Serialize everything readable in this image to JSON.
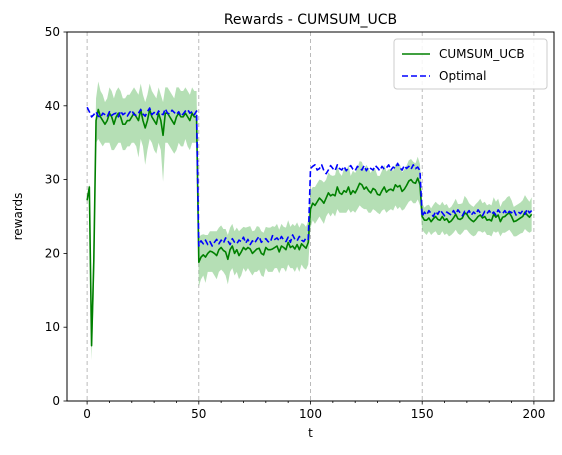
{
  "chart_data": {
    "type": "line",
    "title": "Rewards - CUMSUM_UCB",
    "xlabel": "t",
    "ylabel": "rewards",
    "xlim": [
      -9,
      209
    ],
    "ylim": [
      0,
      50
    ],
    "xticks": [
      0,
      50,
      100,
      150,
      200
    ],
    "yticks": [
      0,
      10,
      20,
      30,
      40,
      50
    ],
    "vlines": [
      0,
      50,
      100,
      150,
      200
    ],
    "legend_position": "upper right",
    "series": [
      {
        "name": "CUMSUM_UCB",
        "style": "solid",
        "color": "#008000",
        "band_color": "#5cb85c",
        "x": [
          0,
          1,
          2,
          3,
          4,
          5,
          6,
          7,
          8,
          9,
          10,
          11,
          12,
          13,
          14,
          15,
          16,
          17,
          18,
          19,
          20,
          21,
          22,
          23,
          24,
          25,
          26,
          27,
          28,
          29,
          30,
          31,
          32,
          33,
          34,
          35,
          36,
          37,
          38,
          39,
          40,
          41,
          42,
          43,
          44,
          45,
          46,
          47,
          48,
          49,
          50,
          51,
          52,
          53,
          54,
          55,
          56,
          57,
          58,
          59,
          60,
          61,
          62,
          63,
          64,
          65,
          66,
          67,
          68,
          69,
          70,
          71,
          72,
          73,
          74,
          75,
          76,
          77,
          78,
          79,
          80,
          81,
          82,
          83,
          84,
          85,
          86,
          87,
          88,
          89,
          90,
          91,
          92,
          93,
          94,
          95,
          96,
          97,
          98,
          99,
          100,
          101,
          102,
          103,
          104,
          105,
          106,
          107,
          108,
          109,
          110,
          111,
          112,
          113,
          114,
          115,
          116,
          117,
          118,
          119,
          120,
          121,
          122,
          123,
          124,
          125,
          126,
          127,
          128,
          129,
          130,
          131,
          132,
          133,
          134,
          135,
          136,
          137,
          138,
          139,
          140,
          141,
          142,
          143,
          144,
          145,
          146,
          147,
          148,
          149,
          150,
          151,
          152,
          153,
          154,
          155,
          156,
          157,
          158,
          159,
          160,
          161,
          162,
          163,
          164,
          165,
          166,
          167,
          168,
          169,
          170,
          171,
          172,
          173,
          174,
          175,
          176,
          177,
          178,
          179,
          180,
          181,
          182,
          183,
          184,
          185,
          186,
          187,
          188,
          189,
          190,
          191,
          192,
          193,
          194,
          195,
          196,
          197,
          198,
          199
        ],
        "values": [
          27.2,
          29,
          7.5,
          19,
          38,
          39.5,
          38.5,
          38,
          37.5,
          38,
          39,
          38.5,
          37.5,
          38.5,
          39,
          38.5,
          37.5,
          37.5,
          38,
          38,
          38.5,
          39,
          38.5,
          38,
          39.5,
          38,
          37,
          38,
          39.5,
          38.5,
          38,
          37.5,
          39,
          38,
          36,
          39,
          39,
          38.5,
          38,
          37.5,
          38.5,
          39,
          38.5,
          38.5,
          39,
          38.5,
          38,
          39,
          38.5,
          38.5,
          18.8,
          19.5,
          19.8,
          19.5,
          20,
          20.3,
          20.2,
          20,
          19.7,
          20.5,
          20.8,
          20.4,
          20.2,
          19.2,
          20.5,
          21,
          20,
          20.5,
          19.7,
          20.2,
          20.8,
          20.5,
          20.8,
          20.6,
          20,
          20.3,
          20.6,
          20.7,
          20,
          19.8,
          20.8,
          20.5,
          20.5,
          20.6,
          20.8,
          21,
          20.2,
          21,
          20.8,
          20.5,
          21.5,
          20.8,
          21,
          20.6,
          21.2,
          20.5,
          21.3,
          21,
          20.7,
          21.5,
          26,
          26.8,
          26.5,
          27,
          27.5,
          27.2,
          26.8,
          27.5,
          28.2,
          27.8,
          28,
          27.8,
          29,
          28.2,
          28,
          28.5,
          28.3,
          29,
          28,
          28.5,
          28.2,
          28.8,
          29.5,
          29.3,
          28.7,
          29,
          28.5,
          28.2,
          28.8,
          28.6,
          28,
          27.9,
          28.5,
          29,
          28.3,
          28.6,
          28.7,
          28.5,
          29.3,
          29,
          29.2,
          28.4,
          28.7,
          29.2,
          29.8,
          30,
          29.6,
          29.5,
          30.2,
          29.3,
          25,
          24.5,
          24.5,
          24.8,
          24.3,
          24.7,
          25,
          24.6,
          24.5,
          25,
          24.5,
          24.7,
          24.2,
          24.4,
          24.8,
          25.3,
          24.7,
          24.6,
          24.8,
          25.5,
          25.3,
          24.8,
          24.5,
          24.3,
          24.6,
          25,
          25.2,
          24.8,
          25,
          24.5,
          24.6,
          24.4,
          25.3,
          24.9,
          25.2,
          24.3,
          24.9,
          25,
          25.3,
          25.5,
          25,
          24.3,
          24.4,
          24.6,
          24.8,
          25,
          25.6,
          25.2,
          24.9,
          25.3
        ],
        "lower": [
          26.7,
          28.5,
          5.5,
          14,
          35,
          35.5,
          35,
          34.5,
          35,
          35,
          35,
          34,
          34,
          34.5,
          35,
          35,
          34,
          34,
          34.5,
          34.5,
          35,
          35,
          34.5,
          33,
          35.5,
          34.5,
          32,
          34,
          35.5,
          35,
          34,
          33.5,
          35,
          34,
          29.7,
          35,
          35,
          34.5,
          34,
          33.5,
          34,
          35,
          34.5,
          34.5,
          35.5,
          34.5,
          34,
          35,
          35,
          35,
          15.5,
          16.5,
          17,
          16,
          17.5,
          17.5,
          17.5,
          17,
          16.5,
          17.5,
          17.8,
          17.5,
          17,
          15.8,
          17.5,
          18,
          17,
          17.5,
          16.5,
          17,
          18,
          17.5,
          18,
          17.5,
          17,
          17.5,
          17.5,
          17.8,
          17,
          16.8,
          18,
          17.5,
          17.5,
          17.5,
          18,
          18,
          17.3,
          18,
          18,
          17.5,
          18.5,
          18,
          18,
          17.5,
          18.2,
          17.5,
          18.5,
          18,
          17.8,
          18.5,
          23.5,
          24.5,
          24,
          24.5,
          25,
          24.5,
          24,
          25,
          25.5,
          25,
          25.5,
          25,
          26,
          25.5,
          25.5,
          25.5,
          25.5,
          26,
          25.5,
          25.8,
          25.5,
          26,
          26.5,
          26.2,
          26,
          26,
          25.5,
          25.5,
          26,
          25.8,
          25.5,
          25.3,
          25.8,
          26,
          25.5,
          25.8,
          26,
          25.8,
          26.5,
          26,
          26.3,
          25.8,
          26,
          26.5,
          27,
          27.2,
          26.8,
          26.8,
          27.3,
          26.5,
          23.2,
          22.8,
          22.5,
          23,
          22.5,
          22.8,
          23,
          22.5,
          22.5,
          23,
          22.5,
          22.7,
          22.3,
          22.5,
          22.8,
          23.2,
          22.7,
          22.5,
          22.8,
          23.2,
          23.2,
          22.8,
          22.5,
          22.3,
          22.5,
          23,
          23,
          22.8,
          23,
          22.5,
          22.5,
          22.3,
          23,
          22.8,
          23,
          22.3,
          22.8,
          22.8,
          23,
          23.2,
          22.8,
          22.3,
          22.3,
          22.5,
          22.7,
          22.8,
          23.3,
          23,
          22.8,
          23
        ],
        "upper": [
          27.7,
          29.5,
          9.5,
          24,
          41,
          43.3,
          42,
          41.5,
          40.5,
          41,
          42.5,
          42,
          41,
          42,
          42.5,
          42,
          41,
          41,
          41.5,
          41.5,
          42,
          42.5,
          42,
          41.5,
          43,
          41.5,
          40.5,
          41.5,
          43,
          42,
          41.5,
          41,
          42.5,
          41.5,
          40.5,
          42.5,
          42.5,
          42,
          41.5,
          41,
          42.5,
          42.5,
          42,
          42,
          42.5,
          42,
          41.5,
          42.5,
          42,
          42,
          22.2,
          22.5,
          22.6,
          22.5,
          22.5,
          23,
          23,
          23,
          23,
          23.5,
          23.8,
          23.3,
          23.3,
          22.5,
          23.5,
          24,
          23,
          23.5,
          23,
          23.3,
          23.6,
          23.5,
          23.6,
          23.7,
          23,
          23.1,
          23.7,
          23.6,
          23,
          22.8,
          23.6,
          23.5,
          23.5,
          23.7,
          23.6,
          24,
          23.2,
          24,
          23.6,
          23.5,
          24.5,
          23.6,
          24,
          23.7,
          24.2,
          23.5,
          24.1,
          24,
          23.6,
          24.5,
          28.5,
          29,
          29,
          29.5,
          30,
          29.9,
          29.6,
          30,
          31,
          30.6,
          30.5,
          30.6,
          32,
          30.9,
          30.5,
          31.5,
          31.1,
          32,
          30.5,
          31.2,
          30.9,
          31.6,
          32.5,
          32.4,
          31.4,
          32,
          31.5,
          30.9,
          31.6,
          31.4,
          30.5,
          30.5,
          31.2,
          32,
          31.1,
          31.4,
          31.4,
          31.2,
          32.1,
          32,
          32.1,
          31,
          31.4,
          31.9,
          32.6,
          32.8,
          32.4,
          32.2,
          33.1,
          32.1,
          26.8,
          26.2,
          26.5,
          26.6,
          26.1,
          26.6,
          27,
          26.7,
          26.5,
          27,
          26.5,
          26.7,
          26.1,
          26.3,
          26.8,
          27.4,
          26.7,
          26.7,
          26.8,
          27.8,
          27.4,
          26.8,
          26.5,
          26.3,
          26.7,
          27,
          27.4,
          26.8,
          27,
          26.5,
          26.7,
          26.5,
          27.6,
          27,
          27.4,
          26.3,
          27,
          27.2,
          27.6,
          27.8,
          27.2,
          26.3,
          26.5,
          26.7,
          26.9,
          27.2,
          27.9,
          27.4,
          27,
          27.6
        ]
      },
      {
        "name": "Optimal",
        "style": "dashed",
        "color": "#0000ff",
        "x": [
          0,
          1,
          2,
          3,
          4,
          5,
          6,
          7,
          8,
          9,
          10,
          11,
          12,
          13,
          14,
          15,
          16,
          17,
          18,
          19,
          20,
          21,
          22,
          23,
          24,
          25,
          26,
          27,
          28,
          29,
          30,
          31,
          32,
          33,
          34,
          35,
          36,
          37,
          38,
          39,
          40,
          41,
          42,
          43,
          44,
          45,
          46,
          47,
          48,
          49,
          50,
          51,
          52,
          53,
          54,
          55,
          56,
          57,
          58,
          59,
          60,
          61,
          62,
          63,
          64,
          65,
          66,
          67,
          68,
          69,
          70,
          71,
          72,
          73,
          74,
          75,
          76,
          77,
          78,
          79,
          80,
          81,
          82,
          83,
          84,
          85,
          86,
          87,
          88,
          89,
          90,
          91,
          92,
          93,
          94,
          95,
          96,
          97,
          98,
          99,
          100,
          101,
          102,
          103,
          104,
          105,
          106,
          107,
          108,
          109,
          110,
          111,
          112,
          113,
          114,
          115,
          116,
          117,
          118,
          119,
          120,
          121,
          122,
          123,
          124,
          125,
          126,
          127,
          128,
          129,
          130,
          131,
          132,
          133,
          134,
          135,
          136,
          137,
          138,
          139,
          140,
          141,
          142,
          143,
          144,
          145,
          146,
          147,
          148,
          149,
          150,
          151,
          152,
          153,
          154,
          155,
          156,
          157,
          158,
          159,
          160,
          161,
          162,
          163,
          164,
          165,
          166,
          167,
          168,
          169,
          170,
          171,
          172,
          173,
          174,
          175,
          176,
          177,
          178,
          179,
          180,
          181,
          182,
          183,
          184,
          185,
          186,
          187,
          188,
          189,
          190,
          191,
          192,
          193,
          194,
          195,
          196,
          197,
          198,
          199
        ],
        "values": [
          39.8,
          39.2,
          38.5,
          38.8,
          39.2,
          38.6,
          38.4,
          39,
          38.8,
          38.5,
          39.2,
          38.7,
          38.9,
          39,
          38.5,
          39.3,
          38.8,
          39,
          38.6,
          39.1,
          39.4,
          38.8,
          38.7,
          39,
          39.5,
          38.9,
          38.6,
          39.2,
          39.7,
          38.8,
          39.1,
          38.7,
          39.3,
          38.9,
          38.8,
          39.6,
          39,
          38.9,
          39.4,
          39.1,
          38.8,
          39.2,
          38.6,
          38.9,
          39.3,
          39.5,
          39,
          39.2,
          38.8,
          39.3,
          21,
          21.7,
          21.3,
          21.8,
          21.2,
          21.6,
          21,
          21.5,
          21.9,
          21.3,
          21.8,
          21.4,
          22.1,
          21.7,
          21.2,
          22,
          21.5,
          21.3,
          21.8,
          21.6,
          22.2,
          21.4,
          21.9,
          21.2,
          21.7,
          21.4,
          21.9,
          22.3,
          21.5,
          21.8,
          22,
          21.6,
          21.5,
          22.4,
          21.9,
          22.1,
          21.7,
          22.3,
          21.8,
          21.6,
          22.2,
          21.5,
          22.5,
          21.9,
          21.7,
          22.3,
          21.8,
          21.6,
          22.1,
          21.9,
          31.5,
          31.8,
          32,
          31.3,
          31.5,
          32,
          31.2,
          30.8,
          31.3,
          31.9,
          31.5,
          31.2,
          32,
          31.5,
          31.3,
          31.8,
          31.2,
          31.6,
          31.9,
          31.4,
          31.2,
          31.8,
          31.5,
          31.3,
          31.9,
          31.2,
          31.7,
          31.5,
          31.3,
          31.9,
          31.6,
          31.2,
          31.8,
          31.4,
          31.6,
          32,
          31.3,
          31.7,
          31.5,
          32.2,
          31.6,
          31.3,
          31.9,
          31.5,
          31.8,
          31.4,
          32,
          31.5,
          31.7,
          31.2,
          25,
          25.6,
          25.2,
          25.8,
          25.4,
          25,
          25.7,
          25.3,
          25.9,
          25.5,
          25.1,
          25.6,
          25.4,
          25.2,
          25.8,
          25.3,
          25.9,
          25.5,
          25.1,
          25.7,
          25.4,
          25.8,
          25.2,
          25.6,
          25.3,
          25.9,
          25.5,
          25.1,
          25.7,
          25.4,
          25.8,
          25.3,
          25.6,
          25.2,
          25.9,
          25.5,
          25.4,
          25.8,
          25.3,
          25.7,
          25.5,
          25.9,
          25.2,
          25.6,
          25.4,
          25.8,
          25.3,
          26,
          25.5,
          25.8
        ]
      }
    ]
  }
}
